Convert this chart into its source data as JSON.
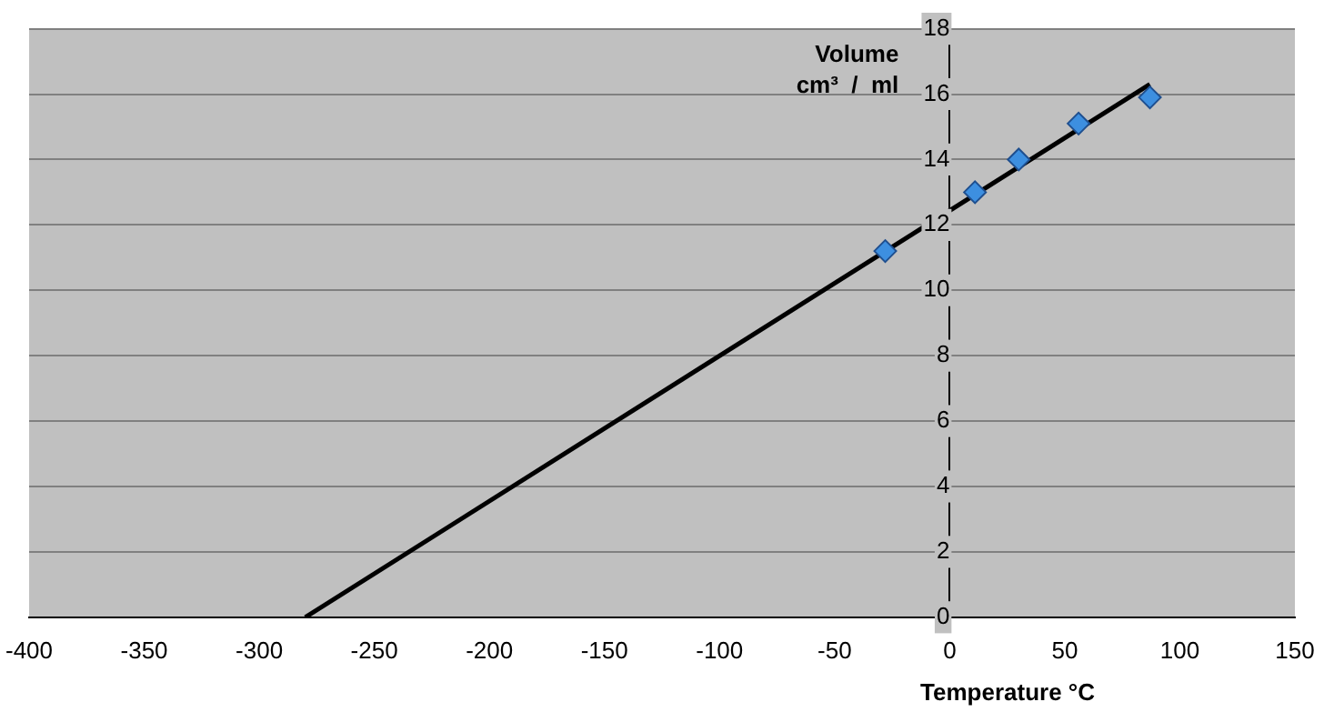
{
  "chart_data": {
    "type": "scatter",
    "xlabel": "Temperature °C",
    "ylabel": "Volume\ncm³  /  ml",
    "xlim": [
      -400,
      150
    ],
    "xticks": [
      -400,
      -350,
      -300,
      -250,
      -200,
      -150,
      -100,
      -50,
      0,
      50,
      100,
      150
    ],
    "ylim": [
      0,
      18
    ],
    "yticks": [
      0,
      2,
      4,
      6,
      8,
      10,
      12,
      14,
      16,
      18
    ],
    "grid": "y",
    "marker": "diamond",
    "series": [
      {
        "color": "#3d8fe0",
        "x": [
          -28,
          11,
          30,
          56,
          87
        ],
        "values": [
          11.2,
          13.0,
          14.0,
          15.1,
          15.9
        ]
      },
      {
        "type": "line",
        "color": "#000000",
        "x": [
          -280,
          87
        ],
        "values": [
          0,
          16.3
        ],
        "marker": "none"
      }
    ]
  }
}
